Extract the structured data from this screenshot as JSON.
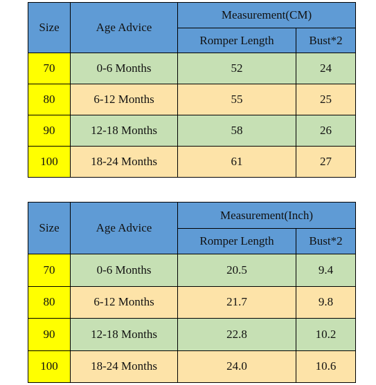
{
  "tables": [
    {
      "header": {
        "size": "Size",
        "age": "Age Advice",
        "group": "Measurement(CM)",
        "columns": [
          "Romper Length",
          "Bust*2"
        ]
      },
      "rows": [
        [
          "70",
          "0-6 Months",
          "52",
          "24"
        ],
        [
          "80",
          "6-12 Months",
          "55",
          "25"
        ],
        [
          "90",
          "12-18 Months",
          "58",
          "26"
        ],
        [
          "100",
          "18-24 Months",
          "61",
          "27"
        ]
      ]
    },
    {
      "header": {
        "size": "Size",
        "age": "Age Advice",
        "group": "Measurement(Inch)",
        "columns": [
          "Romper Length",
          "Bust*2"
        ]
      },
      "rows": [
        [
          "70",
          "0-6 Months",
          "20.5",
          "9.4"
        ],
        [
          "80",
          "6-12 Months",
          "21.7",
          "9.8"
        ],
        [
          "90",
          "12-18 Months",
          "22.8",
          "10.2"
        ],
        [
          "100",
          "18-24 Months",
          "24.0",
          "10.6"
        ]
      ]
    }
  ]
}
